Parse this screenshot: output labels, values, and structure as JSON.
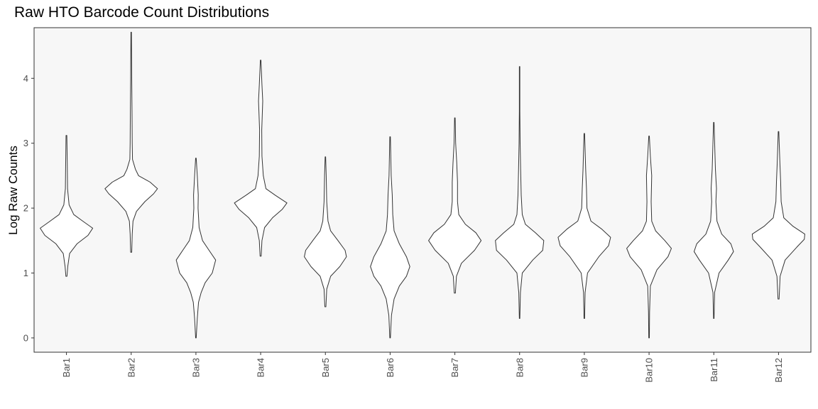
{
  "chart_data": {
    "type": "violin",
    "title": "Raw HTO Barcode Count Distributions",
    "xlabel": "",
    "ylabel": "Log Raw Counts",
    "ylim": [
      -0.22,
      4.78
    ],
    "yticks": [
      0,
      1,
      2,
      3,
      4
    ],
    "grid": false,
    "panel_background": "#f7f7f7",
    "line_color": "#333333",
    "categories": [
      "Bar1",
      "Bar2",
      "Bar3",
      "Bar4",
      "Bar5",
      "Bar6",
      "Bar7",
      "Bar8",
      "Bar9",
      "Bar10",
      "Bar11",
      "Bar12"
    ],
    "violins": [
      {
        "label": "Bar1",
        "min": 0.95,
        "max": 3.12,
        "profile": [
          [
            0.95,
            0.02
          ],
          [
            1.1,
            0.05
          ],
          [
            1.3,
            0.12
          ],
          [
            1.45,
            0.4
          ],
          [
            1.58,
            0.82
          ],
          [
            1.69,
            1.0
          ],
          [
            1.8,
            0.62
          ],
          [
            1.9,
            0.28
          ],
          [
            2.05,
            0.1
          ],
          [
            2.3,
            0.04
          ],
          [
            2.7,
            0.03
          ],
          [
            3.12,
            0.015
          ]
        ]
      },
      {
        "label": "Bar2",
        "min": 1.32,
        "max": 4.71,
        "profile": [
          [
            1.32,
            0.02
          ],
          [
            1.6,
            0.04
          ],
          [
            1.8,
            0.07
          ],
          [
            1.95,
            0.2
          ],
          [
            2.1,
            0.52
          ],
          [
            2.22,
            0.85
          ],
          [
            2.3,
            1.0
          ],
          [
            2.4,
            0.72
          ],
          [
            2.5,
            0.28
          ],
          [
            2.6,
            0.16
          ],
          [
            2.75,
            0.05
          ],
          [
            3.0,
            0.04
          ],
          [
            3.5,
            0.03
          ],
          [
            4.0,
            0.02
          ],
          [
            4.71,
            0.01
          ]
        ]
      },
      {
        "label": "Bar3",
        "min": 0.0,
        "max": 2.77,
        "profile": [
          [
            0.0,
            0.01
          ],
          [
            0.3,
            0.05
          ],
          [
            0.55,
            0.1
          ],
          [
            0.7,
            0.2
          ],
          [
            0.85,
            0.35
          ],
          [
            1.0,
            0.62
          ],
          [
            1.2,
            0.75
          ],
          [
            1.35,
            0.5
          ],
          [
            1.5,
            0.25
          ],
          [
            1.7,
            0.12
          ],
          [
            2.0,
            0.08
          ],
          [
            2.2,
            0.09
          ],
          [
            2.5,
            0.05
          ],
          [
            2.77,
            0.01
          ]
        ]
      },
      {
        "label": "Bar4",
        "min": 1.26,
        "max": 4.28,
        "profile": [
          [
            1.26,
            0.02
          ],
          [
            1.5,
            0.05
          ],
          [
            1.7,
            0.15
          ],
          [
            1.85,
            0.45
          ],
          [
            1.98,
            0.82
          ],
          [
            2.08,
            1.0
          ],
          [
            2.2,
            0.55
          ],
          [
            2.3,
            0.2
          ],
          [
            2.5,
            0.1
          ],
          [
            2.8,
            0.05
          ],
          [
            3.2,
            0.04
          ],
          [
            3.65,
            0.08
          ],
          [
            3.9,
            0.05
          ],
          [
            4.28,
            0.01
          ]
        ]
      },
      {
        "label": "Bar5",
        "min": 0.48,
        "max": 2.79,
        "profile": [
          [
            0.48,
            0.02
          ],
          [
            0.75,
            0.05
          ],
          [
            0.95,
            0.2
          ],
          [
            1.1,
            0.55
          ],
          [
            1.25,
            0.8
          ],
          [
            1.35,
            0.75
          ],
          [
            1.5,
            0.48
          ],
          [
            1.65,
            0.2
          ],
          [
            1.8,
            0.1
          ],
          [
            2.1,
            0.05
          ],
          [
            2.5,
            0.03
          ],
          [
            2.79,
            0.01
          ]
        ]
      },
      {
        "label": "Bar6",
        "min": 0.0,
        "max": 3.1,
        "profile": [
          [
            0.0,
            0.01
          ],
          [
            0.35,
            0.05
          ],
          [
            0.6,
            0.15
          ],
          [
            0.8,
            0.35
          ],
          [
            0.95,
            0.62
          ],
          [
            1.1,
            0.75
          ],
          [
            1.25,
            0.62
          ],
          [
            1.45,
            0.35
          ],
          [
            1.65,
            0.15
          ],
          [
            1.9,
            0.1
          ],
          [
            2.2,
            0.08
          ],
          [
            2.5,
            0.04
          ],
          [
            3.1,
            0.01
          ]
        ]
      },
      {
        "label": "Bar7",
        "min": 0.69,
        "max": 3.39,
        "profile": [
          [
            0.69,
            0.02
          ],
          [
            0.95,
            0.06
          ],
          [
            1.15,
            0.25
          ],
          [
            1.35,
            0.75
          ],
          [
            1.5,
            1.0
          ],
          [
            1.62,
            0.8
          ],
          [
            1.75,
            0.4
          ],
          [
            1.9,
            0.15
          ],
          [
            2.1,
            0.1
          ],
          [
            2.4,
            0.1
          ],
          [
            2.7,
            0.07
          ],
          [
            3.0,
            0.03
          ],
          [
            3.39,
            0.01
          ]
        ]
      },
      {
        "label": "Bar8",
        "min": 0.3,
        "max": 4.18,
        "profile": [
          [
            0.3,
            0.01
          ],
          [
            0.7,
            0.03
          ],
          [
            1.0,
            0.1
          ],
          [
            1.2,
            0.5
          ],
          [
            1.35,
            0.88
          ],
          [
            1.5,
            0.92
          ],
          [
            1.62,
            0.6
          ],
          [
            1.75,
            0.22
          ],
          [
            1.9,
            0.1
          ],
          [
            2.2,
            0.06
          ],
          [
            2.6,
            0.04
          ],
          [
            3.0,
            0.02
          ],
          [
            3.5,
            0.01
          ],
          [
            4.18,
            0.01
          ]
        ]
      },
      {
        "label": "Bar9",
        "min": 0.3,
        "max": 3.15,
        "profile": [
          [
            0.3,
            0.01
          ],
          [
            0.7,
            0.03
          ],
          [
            1.0,
            0.12
          ],
          [
            1.25,
            0.55
          ],
          [
            1.42,
            0.92
          ],
          [
            1.55,
            1.0
          ],
          [
            1.68,
            0.65
          ],
          [
            1.8,
            0.25
          ],
          [
            2.0,
            0.1
          ],
          [
            2.3,
            0.08
          ],
          [
            2.6,
            0.05
          ],
          [
            3.15,
            0.01
          ]
        ]
      },
      {
        "label": "Bar10",
        "min": 0.0,
        "max": 3.11,
        "profile": [
          [
            0.0,
            0.01
          ],
          [
            0.4,
            0.02
          ],
          [
            0.8,
            0.05
          ],
          [
            1.05,
            0.3
          ],
          [
            1.25,
            0.72
          ],
          [
            1.38,
            0.85
          ],
          [
            1.5,
            0.6
          ],
          [
            1.65,
            0.25
          ],
          [
            1.8,
            0.1
          ],
          [
            2.1,
            0.08
          ],
          [
            2.5,
            0.1
          ],
          [
            2.8,
            0.05
          ],
          [
            3.11,
            0.01
          ]
        ]
      },
      {
        "label": "Bar11",
        "min": 0.3,
        "max": 3.32,
        "profile": [
          [
            0.3,
            0.01
          ],
          [
            0.7,
            0.03
          ],
          [
            1.0,
            0.2
          ],
          [
            1.2,
            0.55
          ],
          [
            1.33,
            0.75
          ],
          [
            1.45,
            0.65
          ],
          [
            1.6,
            0.3
          ],
          [
            1.8,
            0.12
          ],
          [
            2.1,
            0.08
          ],
          [
            2.3,
            0.1
          ],
          [
            2.6,
            0.06
          ],
          [
            3.32,
            0.01
          ]
        ]
      },
      {
        "label": "Bar12",
        "min": 0.6,
        "max": 3.18,
        "profile": [
          [
            0.6,
            0.02
          ],
          [
            0.95,
            0.06
          ],
          [
            1.2,
            0.25
          ],
          [
            1.4,
            0.7
          ],
          [
            1.52,
            0.98
          ],
          [
            1.6,
            1.0
          ],
          [
            1.72,
            0.55
          ],
          [
            1.85,
            0.2
          ],
          [
            2.1,
            0.1
          ],
          [
            2.4,
            0.08
          ],
          [
            2.7,
            0.05
          ],
          [
            3.18,
            0.01
          ]
        ]
      }
    ]
  }
}
